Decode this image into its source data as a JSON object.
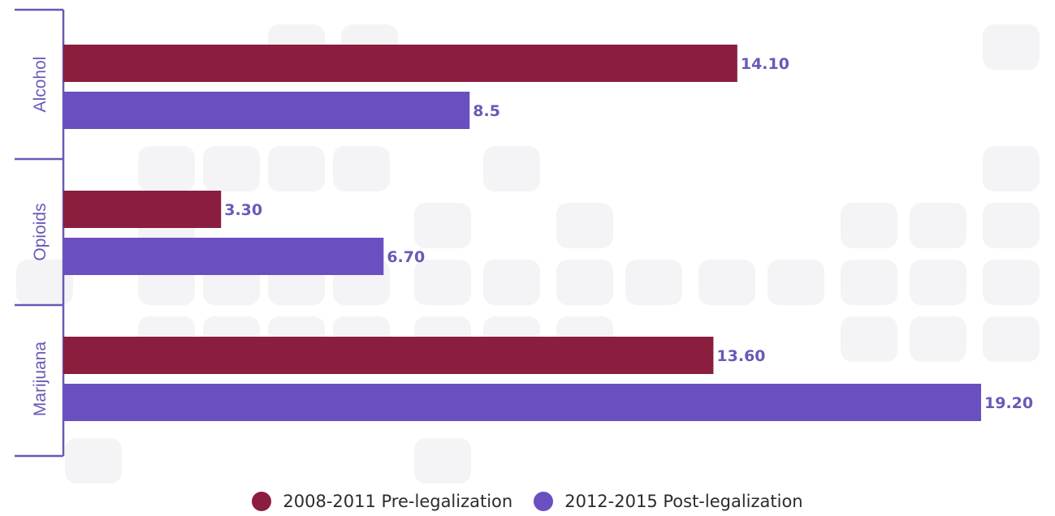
{
  "colors": {
    "pre": "#8b1d3f",
    "post": "#6a4fc1",
    "axis": "#6a58b8",
    "label": "#6a58b8",
    "text": "#2c2c2c"
  },
  "legend": {
    "pre_label": "2008-2011 Pre-legalization",
    "post_label": "2012-2015 Post-legalization"
  },
  "chart_data": {
    "type": "bar",
    "orientation": "horizontal",
    "categories": [
      "Alcohol",
      "Opioids",
      "Marijuana"
    ],
    "series": [
      {
        "name": "2008-2011 Pre-legalization",
        "values": [
          14.1,
          3.3,
          13.6
        ],
        "labels": [
          "14.10",
          "3.30",
          "13.60"
        ]
      },
      {
        "name": "2012-2015 Post-legalization",
        "values": [
          8.5,
          6.7,
          19.2
        ],
        "labels": [
          "8.5",
          "6.70",
          "19.20"
        ]
      }
    ],
    "xlim": [
      0,
      19.2
    ],
    "grid": false,
    "legend_position": "bottom"
  }
}
